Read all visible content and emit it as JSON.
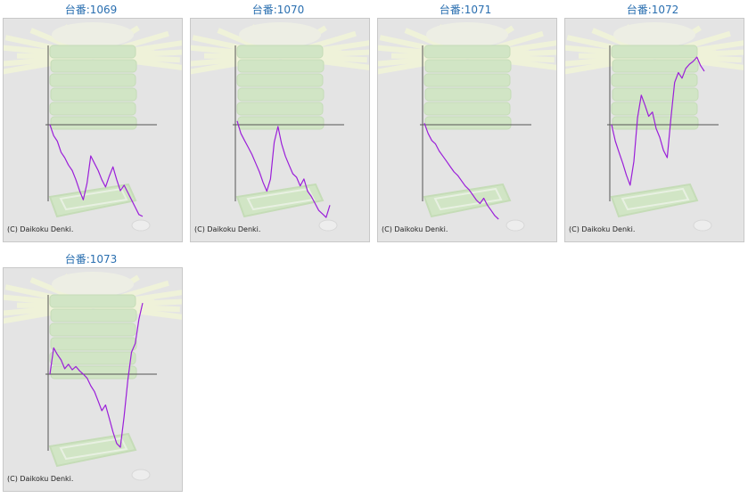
{
  "page": {
    "copyright_text": "(C) Daikoku Denki."
  },
  "colors": {
    "line": "#9b1fd9",
    "axis": "#555555",
    "title": "#2a6fb0",
    "background": "#e4e4e4",
    "watermark": "#cfe6c2"
  },
  "chart_data": [
    {
      "type": "line",
      "title": "台番:1069",
      "x": [
        0,
        4,
        8,
        12,
        16,
        20,
        24,
        28,
        32,
        36,
        40,
        44,
        48,
        52,
        56,
        60,
        64,
        68,
        72,
        76,
        80,
        84,
        88,
        92,
        96,
        100
      ],
      "values": [
        0,
        -0.12,
        -0.18,
        -0.3,
        -0.36,
        -0.44,
        -0.5,
        -0.6,
        -0.72,
        -0.82,
        -0.64,
        -0.34,
        -0.42,
        -0.5,
        -0.6,
        -0.68,
        -0.56,
        -0.46,
        -0.6,
        -0.72,
        -0.66,
        -0.74,
        -0.82,
        -0.9,
        -0.98,
        -1.0
      ],
      "ylim": [
        -1.05,
        1.0
      ]
    },
    {
      "type": "line",
      "title": "台番:1070",
      "x": [
        0,
        4,
        8,
        12,
        16,
        20,
        24,
        28,
        32,
        36,
        40,
        44,
        48,
        52,
        56,
        60,
        64,
        68,
        72,
        76,
        80,
        84,
        88,
        92,
        96,
        100
      ],
      "values": [
        0.05,
        -0.1,
        -0.18,
        -0.26,
        -0.34,
        -0.44,
        -0.54,
        -0.66,
        -0.76,
        -0.62,
        -0.2,
        -0.02,
        -0.22,
        -0.36,
        -0.46,
        -0.56,
        -0.6,
        -0.7,
        -0.62,
        -0.76,
        -0.82,
        -0.9,
        -0.98,
        -1.02,
        -1.06,
        -0.92
      ],
      "ylim": [
        -1.1,
        1.0
      ]
    },
    {
      "type": "line",
      "title": "台番:1071",
      "x": [
        0,
        4,
        8,
        12,
        16,
        20,
        24,
        28,
        32,
        36,
        40,
        44,
        48,
        52,
        56,
        60,
        64,
        68,
        72,
        76,
        80
      ],
      "values": [
        0.02,
        -0.1,
        -0.18,
        -0.22,
        -0.3,
        -0.36,
        -0.42,
        -0.48,
        -0.54,
        -0.58,
        -0.64,
        -0.7,
        -0.74,
        -0.8,
        -0.86,
        -0.9,
        -0.84,
        -0.92,
        -0.98,
        -1.04,
        -1.08
      ],
      "ylim": [
        -1.1,
        1.0
      ]
    },
    {
      "type": "line",
      "title": "台番:1072",
      "x": [
        0,
        4,
        8,
        12,
        16,
        20,
        24,
        28,
        32,
        36,
        40,
        44,
        48,
        52,
        56,
        60,
        64,
        68,
        72,
        76,
        80,
        84,
        88,
        92,
        96,
        100
      ],
      "values": [
        0,
        -0.18,
        -0.3,
        -0.42,
        -0.55,
        -0.66,
        -0.4,
        0.1,
        0.42,
        0.28,
        0.12,
        0.18,
        -0.04,
        -0.14,
        -0.28,
        -0.36,
        0.1,
        0.6,
        0.74,
        0.66,
        0.8,
        0.86,
        0.9,
        0.96,
        0.84,
        0.76
      ],
      "ylim": [
        -1.05,
        1.05
      ]
    },
    {
      "type": "line",
      "title": "台番:1073",
      "x": [
        0,
        4,
        8,
        12,
        16,
        20,
        24,
        28,
        32,
        36,
        40,
        44,
        48,
        52,
        56,
        60,
        64,
        68,
        72,
        76,
        80,
        84,
        88,
        92,
        96,
        100
      ],
      "values": [
        0,
        0.48,
        0.36,
        0.26,
        0.1,
        0.18,
        0.08,
        0.14,
        0.06,
        0.0,
        -0.04,
        -0.12,
        -0.18,
        -0.28,
        -0.38,
        -0.32,
        -0.46,
        -0.6,
        -0.72,
        -0.76,
        -0.44,
        -0.06,
        0.4,
        0.56,
        1.0,
        1.3
      ],
      "ylim": [
        -1.0,
        1.35
      ]
    }
  ]
}
